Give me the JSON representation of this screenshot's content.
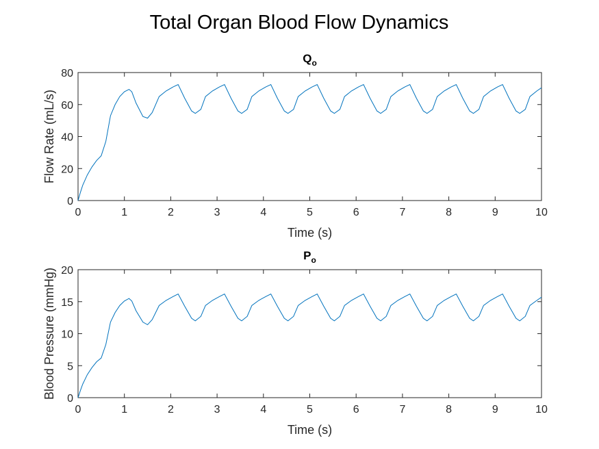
{
  "figure": {
    "suptitle": "Total Organ Blood Flow Dynamics"
  },
  "colors": {
    "line": "#0072bd",
    "axis": "#262626"
  },
  "chart_data": [
    {
      "type": "line",
      "title_main": "Q",
      "title_sub": "o",
      "xlabel": "Time (s)",
      "ylabel": "Flow Rate (mL/s)",
      "xlim": [
        0,
        10
      ],
      "ylim": [
        0,
        80
      ],
      "xticks": [
        0,
        1,
        2,
        3,
        4,
        5,
        6,
        7,
        8,
        9,
        10
      ],
      "yticks": [
        0,
        20,
        40,
        60,
        80
      ],
      "grid": false,
      "series": [
        {
          "x": [
            0,
            0.05,
            0.1,
            0.2,
            0.3,
            0.4,
            0.5,
            0.6,
            0.7,
            0.8,
            0.9,
            1.0,
            1.1,
            1.16,
            1.25,
            1.4,
            1.5,
            1.6,
            1.75,
            1.9,
            2.05,
            2.16,
            2.3,
            2.45,
            2.53,
            2.65,
            2.75,
            2.9,
            3.05,
            3.16,
            3.3,
            3.45,
            3.53,
            3.65,
            3.75,
            3.9,
            4.05,
            4.16,
            4.3,
            4.45,
            4.53,
            4.65,
            4.75,
            4.9,
            5.05,
            5.16,
            5.3,
            5.45,
            5.53,
            5.65,
            5.75,
            5.9,
            6.05,
            6.16,
            6.3,
            6.45,
            6.53,
            6.65,
            6.75,
            6.9,
            7.05,
            7.16,
            7.3,
            7.45,
            7.53,
            7.65,
            7.75,
            7.9,
            8.05,
            8.16,
            8.3,
            8.45,
            8.53,
            8.65,
            8.75,
            8.9,
            9.05,
            9.16,
            9.3,
            9.45,
            9.53,
            9.65,
            9.75,
            9.9,
            10.0
          ],
          "y": [
            0,
            5,
            9.5,
            16,
            21,
            25,
            28,
            37,
            53,
            60,
            65,
            68,
            69.5,
            68,
            61,
            52.5,
            51.5,
            55,
            65,
            68.5,
            71,
            72.5,
            64,
            56,
            54.5,
            57,
            65,
            68.5,
            71,
            72.5,
            64,
            56,
            54.5,
            57,
            65,
            68.5,
            71,
            72.5,
            64,
            56,
            54.5,
            57,
            65,
            68.5,
            71,
            72.5,
            64,
            56,
            54.5,
            57,
            65,
            68.5,
            71,
            72.5,
            64,
            56,
            54.5,
            57,
            65,
            68.5,
            71,
            72.5,
            64,
            56,
            54.5,
            57,
            65,
            68.5,
            71,
            72.5,
            64,
            56,
            54.5,
            57,
            65,
            68.5,
            71,
            72.5,
            64,
            56,
            54.5,
            57,
            65,
            68.5,
            70.5
          ]
        }
      ]
    },
    {
      "type": "line",
      "title_main": "P",
      "title_sub": "o",
      "xlabel": "Time (s)",
      "ylabel": "Blood Pressure (mmHg)",
      "xlim": [
        0,
        10
      ],
      "ylim": [
        0,
        20
      ],
      "xticks": [
        0,
        1,
        2,
        3,
        4,
        5,
        6,
        7,
        8,
        9,
        10
      ],
      "yticks": [
        0,
        5,
        10,
        15,
        20
      ],
      "grid": false,
      "series": [
        {
          "x": [
            0,
            0.05,
            0.1,
            0.2,
            0.3,
            0.4,
            0.5,
            0.6,
            0.7,
            0.8,
            0.9,
            1.0,
            1.1,
            1.16,
            1.25,
            1.4,
            1.5,
            1.6,
            1.75,
            1.9,
            2.05,
            2.16,
            2.3,
            2.45,
            2.53,
            2.65,
            2.75,
            2.9,
            3.05,
            3.16,
            3.3,
            3.45,
            3.53,
            3.65,
            3.75,
            3.9,
            4.05,
            4.16,
            4.3,
            4.45,
            4.53,
            4.65,
            4.75,
            4.9,
            5.05,
            5.16,
            5.3,
            5.45,
            5.53,
            5.65,
            5.75,
            5.9,
            6.05,
            6.16,
            6.3,
            6.45,
            6.53,
            6.65,
            6.75,
            6.9,
            7.05,
            7.16,
            7.3,
            7.45,
            7.53,
            7.65,
            7.75,
            7.9,
            8.05,
            8.16,
            8.3,
            8.45,
            8.53,
            8.65,
            8.75,
            8.9,
            9.05,
            9.16,
            9.3,
            9.45,
            9.53,
            9.65,
            9.75,
            9.9,
            10.0
          ],
          "y": [
            0,
            1.1,
            2.1,
            3.6,
            4.7,
            5.6,
            6.2,
            8.3,
            11.8,
            13.3,
            14.4,
            15.1,
            15.5,
            15.1,
            13.6,
            11.8,
            11.4,
            12.2,
            14.4,
            15.2,
            15.8,
            16.2,
            14.3,
            12.4,
            12.0,
            12.7,
            14.4,
            15.2,
            15.8,
            16.2,
            14.3,
            12.4,
            12.0,
            12.7,
            14.4,
            15.2,
            15.8,
            16.2,
            14.3,
            12.4,
            12.0,
            12.7,
            14.4,
            15.2,
            15.8,
            16.2,
            14.3,
            12.4,
            12.0,
            12.7,
            14.4,
            15.2,
            15.8,
            16.2,
            14.3,
            12.4,
            12.0,
            12.7,
            14.4,
            15.2,
            15.8,
            16.2,
            14.3,
            12.4,
            12.0,
            12.7,
            14.4,
            15.2,
            15.8,
            16.2,
            14.3,
            12.4,
            12.0,
            12.7,
            14.4,
            15.2,
            15.8,
            16.2,
            14.3,
            12.4,
            12.0,
            12.7,
            14.4,
            15.2,
            15.7
          ]
        }
      ]
    }
  ]
}
